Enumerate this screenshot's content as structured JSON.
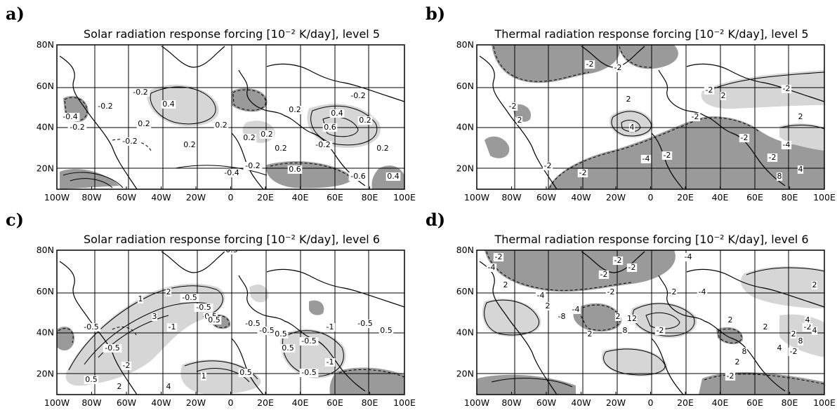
{
  "panels": [
    {
      "letter": "a)",
      "title": "Solar radiation response forcing [10⁻² K/day], level 5",
      "contour_labels": [
        "-0.2",
        "0.4",
        "-0.2",
        "0.2",
        "-0.2",
        "-0.4",
        "0.2",
        "-0.2",
        "0.2",
        "0.2",
        "0.2",
        "0.6",
        "0.4",
        "0.2",
        "-0.2",
        "0.2",
        "-0.4",
        "0.6",
        "-0.2",
        "-0.6",
        "0.4",
        "0.2",
        "-0.2",
        "0.2"
      ]
    },
    {
      "letter": "b)",
      "title": "Thermal radiation response forcing [10⁻² K/day], level 5",
      "contour_labels": [
        "-2",
        "-2",
        "-2",
        "2",
        "2",
        "-2",
        "4",
        "-2",
        "-4",
        "-2",
        "2",
        "-2",
        "-4",
        "-2",
        "-2",
        "2",
        "4",
        "8",
        "-2",
        "-2"
      ]
    },
    {
      "letter": "c)",
      "title": "Solar radiation response forcing [10⁻² K/day], level 6",
      "contour_labels": [
        "0.5",
        "-0.5",
        "1",
        "2",
        "-0.5",
        "0.5",
        "-0.5",
        "3",
        "-1",
        "0.5",
        "-0.5",
        "-0.5",
        "0.5",
        "0.5",
        "-0.5",
        "-1",
        "-0.5",
        "0.5",
        "2",
        "4",
        "0.5",
        "1",
        "-0.5",
        "-2",
        "0.5",
        "-0.5",
        "-1"
      ]
    },
    {
      "letter": "d)",
      "title": "Thermal radiation response forcing [10⁻² K/day], level 6",
      "contour_labels": [
        "-2",
        "-4",
        "-2",
        "-2",
        "-4",
        "-2",
        "2",
        "-4",
        "2",
        "-8",
        "-4",
        "-2",
        "2",
        "12",
        "8",
        "2",
        "-2",
        "2",
        "-4",
        "2",
        "2",
        "8",
        "4",
        "-2",
        "2",
        "4",
        "-2",
        "2",
        "4",
        "8",
        "2",
        "-2"
      ]
    }
  ],
  "axes": {
    "lon_ticks": [
      "100W",
      "80W",
      "60W",
      "40W",
      "20W",
      "0",
      "20E",
      "40E",
      "60E",
      "80E",
      "100E"
    ],
    "lat_ticks": [
      "80N",
      "60N",
      "40N",
      "20N"
    ]
  }
}
